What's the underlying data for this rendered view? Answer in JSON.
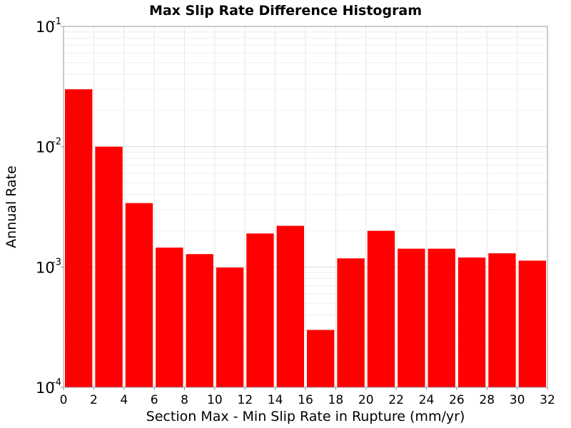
{
  "chart_data": {
    "type": "bar",
    "title": "Max Slip Rate Difference Histogram",
    "xlabel": "Section Max - Min Slip Rate in Rupture (mm/yr)",
    "ylabel": "Annual Rate",
    "xlim": [
      0,
      32
    ],
    "ylim": [
      0.0001,
      0.1
    ],
    "yscale": "log",
    "grid": true,
    "bar_color": "#ff0000",
    "bin_width": 2,
    "x_ticks": [
      "0",
      "2",
      "4",
      "6",
      "8",
      "10",
      "12",
      "14",
      "16",
      "18",
      "20",
      "22",
      "24",
      "26",
      "28",
      "30",
      "32"
    ],
    "y_ticks": [
      {
        "value": 0.1,
        "base": "10",
        "exp": "-1"
      },
      {
        "value": 0.01,
        "base": "10",
        "exp": "-2"
      },
      {
        "value": 0.001,
        "base": "10",
        "exp": "-3"
      },
      {
        "value": 0.0001,
        "base": "10",
        "exp": "-4"
      }
    ],
    "bins": [
      {
        "x": 1,
        "value": 0.03
      },
      {
        "x": 3,
        "value": 0.01
      },
      {
        "x": 5,
        "value": 0.0034
      },
      {
        "x": 7,
        "value": 0.00145
      },
      {
        "x": 9,
        "value": 0.00128
      },
      {
        "x": 11,
        "value": 0.00099
      },
      {
        "x": 13,
        "value": 0.0019
      },
      {
        "x": 15,
        "value": 0.0022
      },
      {
        "x": 17,
        "value": 0.0003
      },
      {
        "x": 19,
        "value": 0.00118
      },
      {
        "x": 21,
        "value": 0.002
      },
      {
        "x": 23,
        "value": 0.00142
      },
      {
        "x": 25,
        "value": 0.00142
      },
      {
        "x": 27,
        "value": 0.0012
      },
      {
        "x": 29,
        "value": 0.0013
      },
      {
        "x": 31,
        "value": 0.00113
      }
    ]
  }
}
